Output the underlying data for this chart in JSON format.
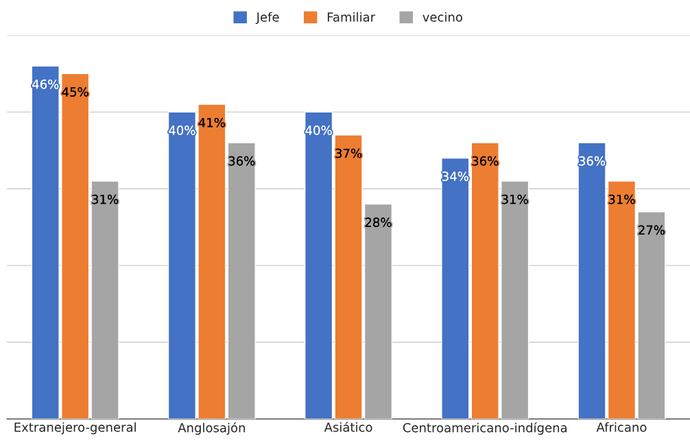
{
  "chart_data": {
    "type": "bar",
    "categories": [
      "Extranejero-general",
      "Anglosajón",
      "Asiático",
      "Centroamericano-indígena",
      "Africano"
    ],
    "series": [
      {
        "name": "Jefe",
        "color": "#4472c4",
        "values": [
          46,
          40,
          40,
          34,
          36
        ],
        "value_labels": [
          "46%",
          "40%",
          "40%",
          "34%",
          "36%"
        ]
      },
      {
        "name": "Familiar",
        "color": "#ed7d31",
        "values": [
          45,
          41,
          37,
          36,
          31
        ],
        "value_labels": [
          "45%",
          "41%",
          "37%",
          "36%",
          "31%"
        ]
      },
      {
        "name": "vecino",
        "color": "#a5a5a5",
        "values": [
          31,
          36,
          28,
          31,
          27
        ],
        "value_labels": [
          "31%",
          "36%",
          "28%",
          "31%",
          "27%"
        ]
      }
    ],
    "ylim": [
      0,
      50
    ],
    "yticks": [
      {
        "value": 0,
        "label": null
      },
      {
        "value": 10,
        "label": null
      },
      {
        "value": 20,
        "label": null
      },
      {
        "value": 30,
        "label": null
      },
      {
        "value": 40,
        "label": null
      },
      {
        "value": 50,
        "label": null
      }
    ],
    "tick_labels": "x",
    "grid": "y",
    "legend": "top"
  }
}
